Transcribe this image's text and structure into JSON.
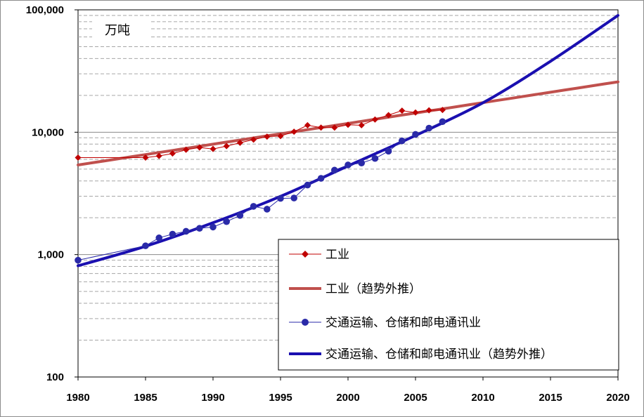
{
  "chart_data": {
    "type": "line",
    "y_scale": "log",
    "unit_label": "万吨",
    "ylim": [
      100,
      100000
    ],
    "xlim": [
      1980,
      2020
    ],
    "y_ticks": [
      {
        "value": 100,
        "label": "100"
      },
      {
        "value": 1000,
        "label": "1,000"
      },
      {
        "value": 10000,
        "label": "10,000"
      },
      {
        "value": 100000,
        "label": "100,000"
      }
    ],
    "x_ticks": [
      {
        "value": 1980,
        "label": "1980"
      },
      {
        "value": 1985,
        "label": "1985"
      },
      {
        "value": 1990,
        "label": "1990"
      },
      {
        "value": 1995,
        "label": "1995"
      },
      {
        "value": 2000,
        "label": "2000"
      },
      {
        "value": 2005,
        "label": "2005"
      },
      {
        "value": 2010,
        "label": "2010"
      },
      {
        "value": 2015,
        "label": "2015"
      },
      {
        "value": 2020,
        "label": "2020"
      }
    ],
    "grid": "horizontal major solid, minor dashed",
    "legend_position": "bottom-right",
    "series": [
      {
        "name": "工业",
        "kind": "marker-line",
        "marker": "diamond",
        "color": "#c00000",
        "x": [
          1980,
          1985,
          1986,
          1987,
          1988,
          1989,
          1990,
          1991,
          1992,
          1993,
          1994,
          1995,
          1996,
          1997,
          1998,
          1999,
          2000,
          2001,
          2002,
          2003,
          2004,
          2005,
          2006,
          2007
        ],
        "y": [
          6200,
          6200,
          6400,
          6700,
          7200,
          7500,
          7300,
          7700,
          8200,
          8700,
          9200,
          9300,
          10100,
          11400,
          10900,
          10900,
          11500,
          11400,
          12700,
          13800,
          15000,
          14500,
          15100,
          15200
        ]
      },
      {
        "name": "工业（趋势外推）",
        "kind": "trend",
        "color": "#c0504d",
        "x": [
          1980,
          2020
        ],
        "y": [
          5400,
          25800
        ]
      },
      {
        "name": "交通运输、仓储和邮电通讯业",
        "kind": "marker-line",
        "marker": "circle",
        "color": "#2a2aa8",
        "x": [
          1980,
          1985,
          1986,
          1987,
          1988,
          1989,
          1990,
          1991,
          1992,
          1993,
          1994,
          1995,
          1996,
          1997,
          1998,
          1999,
          2000,
          2001,
          2002,
          2003,
          2004,
          2005,
          2006,
          2007
        ],
        "y": [
          900,
          1180,
          1370,
          1470,
          1550,
          1640,
          1680,
          1860,
          2090,
          2480,
          2350,
          2880,
          2900,
          3700,
          4200,
          4900,
          5400,
          5600,
          6100,
          7000,
          8500,
          9600,
          10800,
          12200
        ]
      },
      {
        "name": "交通运输、仓储和邮电通讯业（趋势外推）",
        "kind": "trend",
        "color": "#1a0fb0",
        "x": [
          1980,
          1985,
          1990,
          1995,
          2000,
          2005,
          2010,
          2015,
          2020
        ],
        "y": [
          810,
          1170,
          1820,
          2990,
          5300,
          9400,
          17400,
          38000,
          90000
        ]
      }
    ]
  }
}
